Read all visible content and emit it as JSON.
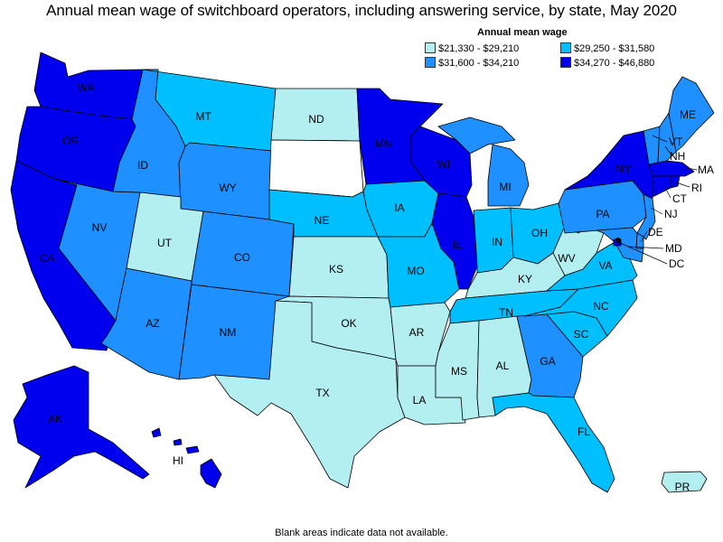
{
  "title": "Annual mean wage of switchboard operators, including answering service, by state, May 2020",
  "note": "Blank areas indicate data not available.",
  "legend": {
    "title": "Annual mean wage",
    "items": [
      {
        "label": "$21,330 - $29,210",
        "color": "#b3eef0"
      },
      {
        "label": "$29,250 - $31,580",
        "color": "#00bfff"
      },
      {
        "label": "$31,600 - $34,210",
        "color": "#1e90ff"
      },
      {
        "label": "$34,270 - $46,880",
        "color": "#0000ee"
      }
    ]
  },
  "states": {
    "WA": {
      "label": "WA",
      "color": "#0000ee"
    },
    "OR": {
      "label": "OR",
      "color": "#0000ee"
    },
    "CA": {
      "label": "CA",
      "color": "#0000ee"
    },
    "NV": {
      "label": "NV",
      "color": "#1e90ff"
    },
    "ID": {
      "label": "ID",
      "color": "#1e90ff"
    },
    "MT": {
      "label": "MT",
      "color": "#00bfff"
    },
    "WY": {
      "label": "WY",
      "color": "#1e90ff"
    },
    "UT": {
      "label": "UT",
      "color": "#b3eef0"
    },
    "AZ": {
      "label": "AZ",
      "color": "#1e90ff"
    },
    "CO": {
      "label": "CO",
      "color": "#1e90ff"
    },
    "NM": {
      "label": "NM",
      "color": "#1e90ff"
    },
    "ND": {
      "label": "ND",
      "color": "#b3eef0"
    },
    "SD": {
      "label": "",
      "color": "#ffffff"
    },
    "NE": {
      "label": "NE",
      "color": "#00bfff"
    },
    "KS": {
      "label": "KS",
      "color": "#b3eef0"
    },
    "OK": {
      "label": "OK",
      "color": "#b3eef0"
    },
    "TX": {
      "label": "TX",
      "color": "#b3eef0"
    },
    "MN": {
      "label": "MN",
      "color": "#0000ee"
    },
    "IA": {
      "label": "IA",
      "color": "#00bfff"
    },
    "MO": {
      "label": "MO",
      "color": "#00bfff"
    },
    "AR": {
      "label": "AR",
      "color": "#b3eef0"
    },
    "LA": {
      "label": "LA",
      "color": "#b3eef0"
    },
    "WI": {
      "label": "WI",
      "color": "#0000ee"
    },
    "IL": {
      "label": "IL",
      "color": "#0000ee"
    },
    "MI": {
      "label": "MI",
      "color": "#1e90ff"
    },
    "IN": {
      "label": "IN",
      "color": "#00bfff"
    },
    "OH": {
      "label": "OH",
      "color": "#00bfff"
    },
    "KY": {
      "label": "KY",
      "color": "#b3eef0"
    },
    "TN": {
      "label": "TN",
      "color": "#00bfff"
    },
    "MS": {
      "label": "MS",
      "color": "#b3eef0"
    },
    "AL": {
      "label": "AL",
      "color": "#b3eef0"
    },
    "GA": {
      "label": "GA",
      "color": "#1e90ff"
    },
    "FL": {
      "label": "FL",
      "color": "#00bfff"
    },
    "SC": {
      "label": "SC",
      "color": "#00bfff"
    },
    "NC": {
      "label": "NC",
      "color": "#00bfff"
    },
    "VA": {
      "label": "VA",
      "color": "#00bfff"
    },
    "WV": {
      "label": "WV",
      "color": "#b3eef0"
    },
    "PA": {
      "label": "PA",
      "color": "#1e90ff"
    },
    "NY": {
      "label": "NY",
      "color": "#0000ee"
    },
    "ME": {
      "label": "ME",
      "color": "#1e90ff"
    },
    "VT": {
      "label": "VT",
      "color": "#1e90ff"
    },
    "NH": {
      "label": "NH",
      "color": "#1e90ff"
    },
    "MA": {
      "label": "MA",
      "color": "#0000ee"
    },
    "RI": {
      "label": "RI",
      "color": "#0000ee"
    },
    "CT": {
      "label": "CT",
      "color": "#0000ee"
    },
    "NJ": {
      "label": "NJ",
      "color": "#1e90ff"
    },
    "DE": {
      "label": "DE",
      "color": "#1e90ff"
    },
    "MD": {
      "label": "MD",
      "color": "#1e90ff"
    },
    "DC": {
      "label": "DC",
      "color": "#0000ee"
    },
    "AK": {
      "label": "AK",
      "color": "#0000ee"
    },
    "HI": {
      "label": "HI",
      "color": "#0000ee"
    },
    "PR": {
      "label": "PR",
      "color": "#b3eef0"
    }
  }
}
